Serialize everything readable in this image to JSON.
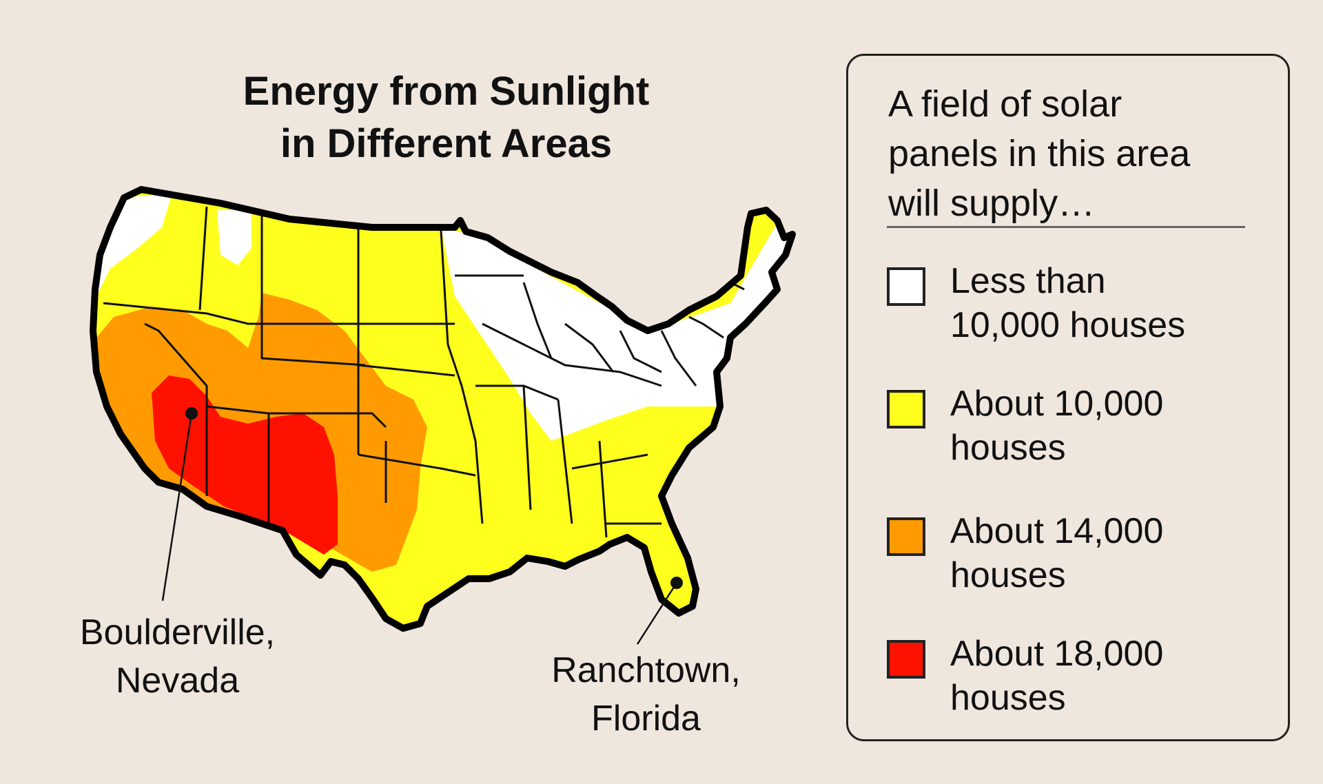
{
  "title": {
    "line1": "Energy from Sunlight",
    "line2": "in Different Areas"
  },
  "cities": [
    {
      "line1": "Boulderville,",
      "line2": "Nevada"
    },
    {
      "line1": "Ranchtown,",
      "line2": "Florida"
    }
  ],
  "legend": {
    "heading_lines": [
      "A field of solar",
      "panels in this area",
      "will supply…"
    ],
    "items": [
      {
        "line1": "Less than",
        "line2": "10,000 houses",
        "color": "#ffffff"
      },
      {
        "line1": "About 10,000",
        "line2": "houses",
        "color": "#ffff1e"
      },
      {
        "line1": "About 14,000",
        "line2": "houses",
        "color": "#ff9b00"
      },
      {
        "line1": "About 18,000",
        "line2": "houses",
        "color": "#ff1100"
      }
    ]
  }
}
